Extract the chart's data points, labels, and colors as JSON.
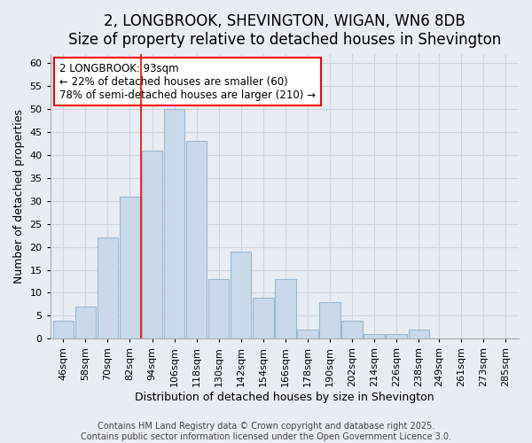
{
  "title_line1": "2, LONGBROOK, SHEVINGTON, WIGAN, WN6 8DB",
  "title_line2": "Size of property relative to detached houses in Shevington",
  "xlabel": "Distribution of detached houses by size in Shevington",
  "ylabel": "Number of detached properties",
  "bin_labels": [
    "46sqm",
    "58sqm",
    "70sqm",
    "82sqm",
    "94sqm",
    "106sqm",
    "118sqm",
    "130sqm",
    "142sqm",
    "154sqm",
    "166sqm",
    "178sqm",
    "190sqm",
    "202sqm",
    "214sqm",
    "226sqm",
    "238sqm",
    "249sqm",
    "261sqm",
    "273sqm",
    "285sqm"
  ],
  "bin_edges": [
    46,
    58,
    70,
    82,
    94,
    106,
    118,
    130,
    142,
    154,
    166,
    178,
    190,
    202,
    214,
    226,
    238,
    249,
    261,
    273,
    285
  ],
  "bin_width": 12,
  "values": [
    4,
    7,
    22,
    31,
    41,
    50,
    43,
    13,
    19,
    9,
    13,
    2,
    8,
    4,
    1,
    1,
    2,
    0,
    0,
    0,
    0
  ],
  "bar_color": "#c9d9ea",
  "bar_edge_color": "#9ab8d0",
  "background_color": "#e8edf4",
  "grid_color": "#cdd5e0",
  "red_line_x": 94,
  "annotation_line1": "2 LONGBROOK: 93sqm",
  "annotation_line2": "← 22% of detached houses are smaller (60)",
  "annotation_line3": "78% of semi-detached houses are larger (210) →",
  "ylim": [
    0,
    62
  ],
  "yticks": [
    0,
    5,
    10,
    15,
    20,
    25,
    30,
    35,
    40,
    45,
    50,
    55,
    60
  ],
  "footer_text": "Contains HM Land Registry data © Crown copyright and database right 2025.\nContains public sector information licensed under the Open Government Licence 3.0.",
  "title_fontsize": 12,
  "subtitle_fontsize": 10,
  "axis_label_fontsize": 9,
  "tick_fontsize": 8,
  "annotation_fontsize": 8.5,
  "footer_fontsize": 7
}
